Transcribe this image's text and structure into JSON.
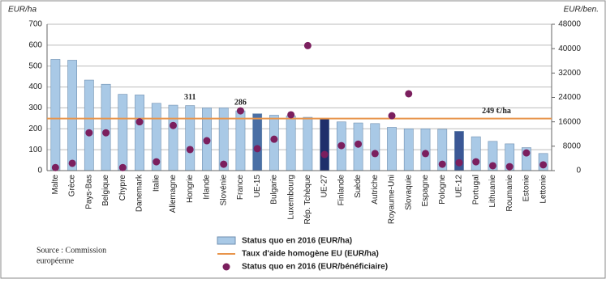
{
  "chart_data": {
    "type": "bar",
    "ylabel": "EUR/ha",
    "y2label": "EUR/ben.",
    "categories": [
      "Malte",
      "Grèce",
      "Pays-Bas",
      "Belgique",
      "Chypre",
      "Danemark",
      "Italie",
      "Allemagne",
      "Hongrie",
      "Irlande",
      "Slovénie",
      "France",
      "UE-15",
      "Bulgarie",
      "Luxembourg",
      "Rép. Tchèque",
      "UE-27",
      "Finlande",
      "Suède",
      "Autriche",
      "Royaume-Uni",
      "Slovaquie",
      "Espagne",
      "Pologne",
      "UE-12",
      "Portugal",
      "Lithuanie",
      "Roumanie",
      "Estonie",
      "Lettonie"
    ],
    "series": [
      {
        "name": "Status quo en 2016 (EUR/ha)",
        "color": "#a9c9e6",
        "colors": [
          "#a9c9e6",
          "#a9c9e6",
          "#a9c9e6",
          "#a9c9e6",
          "#a9c9e6",
          "#a9c9e6",
          "#a9c9e6",
          "#a9c9e6",
          "#a9c9e6",
          "#a9c9e6",
          "#a9c9e6",
          "#a9c9e6",
          "#4a6fa5",
          "#a9c9e6",
          "#a9c9e6",
          "#a9c9e6",
          "#1f2f6b",
          "#a9c9e6",
          "#a9c9e6",
          "#a9c9e6",
          "#a9c9e6",
          "#a9c9e6",
          "#a9c9e6",
          "#a9c9e6",
          "#3b5896",
          "#a9c9e6",
          "#a9c9e6",
          "#a9c9e6",
          "#a9c9e6",
          "#a9c9e6"
        ],
        "values": [
          532,
          528,
          433,
          413,
          365,
          362,
          322,
          313,
          311,
          300,
          300,
          286,
          272,
          265,
          262,
          255,
          249,
          233,
          228,
          225,
          207,
          200,
          200,
          198,
          188,
          162,
          140,
          128,
          110,
          82
        ]
      },
      {
        "name": "Status quo en 2016 (EUR/bénéficiaire)",
        "color": "#7b1f5e",
        "axis": "y2",
        "values": [
          1000,
          2400,
          12400,
          12400,
          1000,
          16000,
          2900,
          14800,
          6900,
          9800,
          2100,
          19600,
          7200,
          10300,
          18300,
          41000,
          5300,
          8200,
          8700,
          5600,
          18000,
          25200,
          5600,
          2100,
          2600,
          2900,
          1600,
          1300,
          5800,
          1900
        ]
      }
    ],
    "reference_line": {
      "name": "Taux d'aide homogène EU (EUR/ha)",
      "value": 249,
      "label": "249 €/ha",
      "color": "#e8944a"
    },
    "annotations": [
      {
        "category": "Hongrie",
        "text": "311"
      },
      {
        "category": "France",
        "text": "286"
      }
    ],
    "source": [
      "Source : Commission",
      "européenne"
    ],
    "ylim": [
      0,
      700
    ],
    "yticks": [
      0,
      100,
      200,
      300,
      400,
      500,
      600,
      700
    ],
    "y2lim": [
      0,
      48000
    ],
    "y2ticks": [
      0,
      8000,
      16000,
      24000,
      32000,
      40000,
      48000
    ],
    "grid": true
  }
}
